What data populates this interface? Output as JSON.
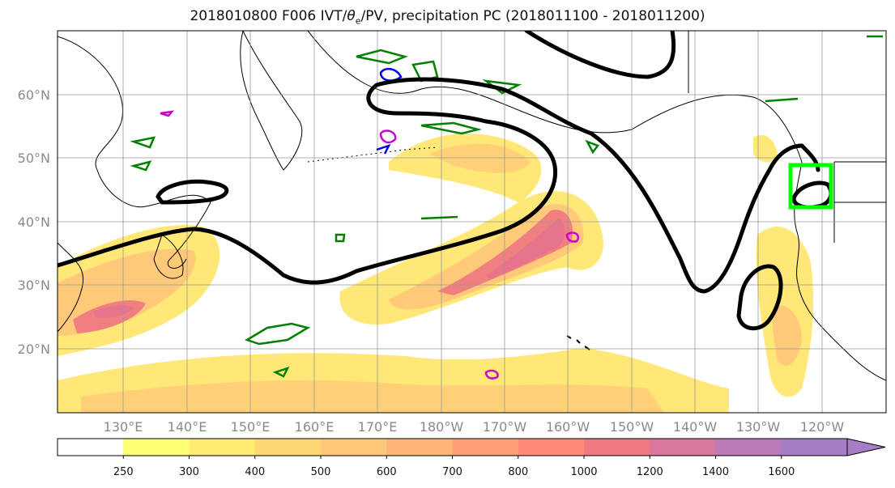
{
  "title": {
    "prefix": "2018010800 F006 IVT/",
    "theta_symbol": "θ",
    "theta_sub": "e",
    "suffix": "/PV, precipitation PC (2018011100 - 2018011200)"
  },
  "axes": {
    "lat_ticks": [
      "20°N",
      "30°N",
      "40°N",
      "50°N",
      "60°N"
    ],
    "lon_ticks": [
      "130°E",
      "140°E",
      "150°E",
      "160°E",
      "170°E",
      "180°W",
      "170°W",
      "160°W",
      "150°W",
      "140°W",
      "130°W",
      "120°W"
    ],
    "grid": true
  },
  "colorbar": {
    "ticks": [
      "250",
      "300",
      "400",
      "500",
      "600",
      "700",
      "800",
      "1000",
      "1200",
      "1400",
      "1600"
    ],
    "colors": [
      "#ffffff",
      "#ffff73",
      "#ffec70",
      "#ffd873",
      "#ffc878",
      "#ffb47a",
      "#ff9f7a",
      "#ff8a78",
      "#f07a82",
      "#d9779c",
      "#bb7ab8",
      "#a57ec5"
    ],
    "extend": "max"
  },
  "legend_colors": {
    "pv_contour": "#000000",
    "theta_e": "#008000",
    "blue": "#0000ee",
    "magenta": "#cc00cc",
    "target_box": "#00ff00"
  }
}
